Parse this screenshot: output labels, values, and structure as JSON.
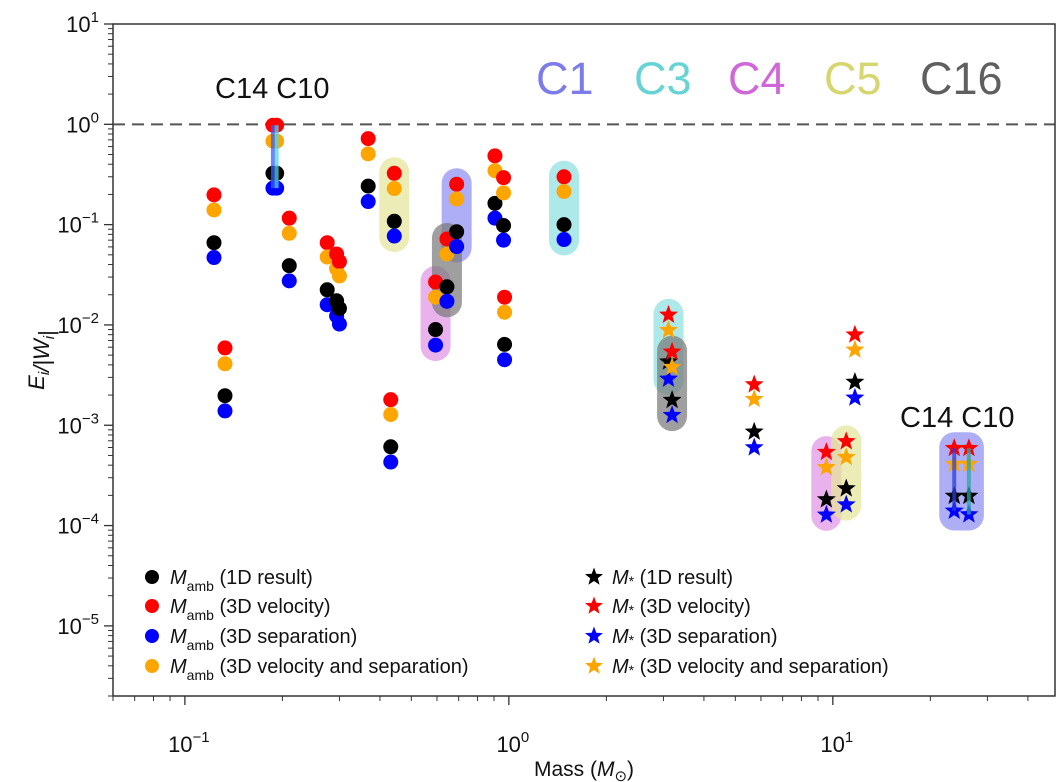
{
  "chart_data": {
    "type": "scatter",
    "xscale": "log",
    "yscale": "log",
    "xlim": [
      0.06,
      48.5
    ],
    "ylim": [
      2e-06,
      10
    ],
    "grid": false,
    "legend_placement": "bottom",
    "xlabel": {
      "text": "Mass (",
      "symbol": "M",
      "sub": "⊙",
      "end": ")"
    },
    "ylabel": {
      "parts": [
        [
          "E",
          "i"
        ],
        [
          "/|W",
          "i"
        ],
        [
          "|",
          ""
        ]
      ]
    },
    "xticks": [
      {
        "value": 0.1,
        "label": "10^-1"
      },
      {
        "value": 1,
        "label": "10^0"
      },
      {
        "value": 10,
        "label": "10^1"
      }
    ],
    "yticks": [
      {
        "value": 10,
        "label": "10^1"
      },
      {
        "value": 1,
        "label": "10^0"
      },
      {
        "value": 0.1,
        "label": "10^-1"
      },
      {
        "value": 0.01,
        "label": "10^-2"
      },
      {
        "value": 0.001,
        "label": "10^-3"
      },
      {
        "value": 0.0001,
        "label": "10^-4"
      },
      {
        "value": 1e-05,
        "label": "10^-5"
      }
    ],
    "reference_line": {
      "y": 1,
      "style": "dashed",
      "color": "#555555"
    },
    "series": [
      {
        "key": "1d",
        "marker_group": "amb",
        "color": "#000000",
        "label": {
          "symbol": "M",
          "sub": "amb",
          "text": " (1D result)"
        }
      },
      {
        "key": "vel",
        "marker_group": "amb",
        "color": "#ff0000",
        "label": {
          "symbol": "M",
          "sub": "amb",
          "text": " (3D velocity)"
        }
      },
      {
        "key": "sep",
        "marker_group": "amb",
        "color": "#0000ff",
        "label": {
          "symbol": "M",
          "sub": "amb",
          "text": " (3D separation)"
        }
      },
      {
        "key": "velsep",
        "marker_group": "amb",
        "color": "#ffa500",
        "label": {
          "symbol": "M",
          "sub": "amb",
          "text": " (3D velocity and separation)"
        }
      },
      {
        "key": "1d",
        "marker_group": "star",
        "color": "#000000",
        "label": {
          "symbol": "M",
          "sub": "*",
          "text": " (1D result)"
        }
      },
      {
        "key": "vel",
        "marker_group": "star",
        "color": "#ff0000",
        "label": {
          "symbol": "M",
          "sub": "*",
          "text": " (3D velocity)"
        }
      },
      {
        "key": "sep",
        "marker_group": "star",
        "color": "#0000ff",
        "label": {
          "symbol": "M",
          "sub": "*",
          "text": " (3D separation)"
        }
      },
      {
        "key": "velsep",
        "marker_group": "star",
        "color": "#ffa500",
        "label": {
          "symbol": "M",
          "sub": "*",
          "text": " (3D velocity and separation)"
        }
      }
    ],
    "groups": [
      {
        "id": "a",
        "marker": "circle",
        "mass": 0.123,
        "1d": 0.066,
        "vel": 0.198,
        "sep": 0.047,
        "velsep": 0.14
      },
      {
        "id": "b",
        "marker": "circle",
        "mass": 0.133,
        "1d": 0.00197,
        "vel": 0.0059,
        "sep": 0.00139,
        "velsep": 0.0041
      },
      {
        "id": "c14a",
        "marker": "circle",
        "mass": 0.187,
        "1d": 0.325,
        "vel": 0.98,
        "sep": 0.231,
        "velsep": 0.68
      },
      {
        "id": "c10a",
        "marker": "circle",
        "mass": 0.192,
        "1d": 0.325,
        "vel": 0.98,
        "sep": 0.231,
        "velsep": 0.68
      },
      {
        "id": "d",
        "marker": "circle",
        "mass": 0.21,
        "1d": 0.039,
        "vel": 0.116,
        "sep": 0.0275,
        "velsep": 0.082
      },
      {
        "id": "e",
        "marker": "circle",
        "mass": 0.275,
        "1d": 0.0224,
        "vel": 0.066,
        "sep": 0.0159,
        "velsep": 0.0475
      },
      {
        "id": "f1",
        "marker": "circle",
        "mass": 0.294,
        "1d": 0.0174,
        "vel": 0.051,
        "sep": 0.0123,
        "velsep": 0.0364
      },
      {
        "id": "f2",
        "marker": "circle",
        "mass": 0.3,
        "1d": 0.0146,
        "vel": 0.0428,
        "sep": 0.0102,
        "velsep": 0.0308
      },
      {
        "id": "g",
        "marker": "circle",
        "mass": 0.368,
        "1d": 0.242,
        "vel": 0.72,
        "sep": 0.17,
        "velsep": 0.508
      },
      {
        "id": "i",
        "marker": "circle",
        "mass": 0.432,
        "1d": 0.00061,
        "vel": 0.0018,
        "sep": 0.00043,
        "velsep": 0.00128
      },
      {
        "id": "c5a",
        "marker": "circle",
        "mass": 0.443,
        "1d": 0.108,
        "vel": 0.325,
        "sep": 0.077,
        "velsep": 0.229
      },
      {
        "id": "c4a",
        "marker": "circle",
        "mass": 0.594,
        "1d": 0.009,
        "vel": 0.0268,
        "sep": 0.0063,
        "velsep": 0.0189
      },
      {
        "id": "c16a",
        "marker": "circle",
        "mass": 0.644,
        "1d": 0.024,
        "vel": 0.072,
        "sep": 0.0172,
        "velsep": 0.051
      },
      {
        "id": "c1a",
        "marker": "circle",
        "mass": 0.69,
        "1d": 0.085,
        "vel": 0.253,
        "sep": 0.0605,
        "velsep": 0.18
      },
      {
        "id": "m",
        "marker": "circle",
        "mass": 0.906,
        "1d": 0.163,
        "vel": 0.485,
        "sep": 0.116,
        "velsep": 0.345
      },
      {
        "id": "n",
        "marker": "circle",
        "mass": 0.963,
        "1d": 0.098,
        "vel": 0.294,
        "sep": 0.07,
        "velsep": 0.207
      },
      {
        "id": "o",
        "marker": "circle",
        "mass": 0.97,
        "1d": 0.0064,
        "vel": 0.0189,
        "sep": 0.0045,
        "velsep": 0.0134
      },
      {
        "id": "c3a",
        "marker": "circle",
        "mass": 1.48,
        "1d": 0.1,
        "vel": 0.3,
        "sep": 0.071,
        "velsep": 0.214
      },
      {
        "id": "c3b",
        "marker": "star",
        "mass": 3.11,
        "1d": 0.0043,
        "vel": 0.0126,
        "sep": 0.0029,
        "velsep": 0.00886
      },
      {
        "id": "c16b",
        "marker": "star",
        "mass": 3.19,
        "1d": 0.00178,
        "vel": 0.0054,
        "sep": 0.00126,
        "velsep": 0.0038
      },
      {
        "id": "s2",
        "marker": "star",
        "mass": 5.72,
        "1d": 0.00086,
        "vel": 0.00255,
        "sep": 0.0006,
        "velsep": 0.00182
      },
      {
        "id": "c4b",
        "marker": "star",
        "mass": 9.55,
        "1d": 0.000182,
        "vel": 0.00054,
        "sep": 0.000128,
        "velsep": 0.00038
      },
      {
        "id": "c5b",
        "marker": "star",
        "mass": 11.0,
        "1d": 0.000234,
        "vel": 0.00069,
        "sep": 0.000162,
        "velsep": 0.00048
      },
      {
        "id": "s3",
        "marker": "star",
        "mass": 11.7,
        "1d": 0.0027,
        "vel": 0.008,
        "sep": 0.00188,
        "velsep": 0.00565
      },
      {
        "id": "c14b",
        "marker": "star",
        "mass": 23.7,
        "1d": 0.000197,
        "vel": 0.00059,
        "sep": 0.00014,
        "velsep": 0.00041
      },
      {
        "id": "c10b",
        "marker": "star",
        "mass": 26.3,
        "1d": 0.000197,
        "vel": 0.00059,
        "sep": 0.000129,
        "velsep": 0.00041
      }
    ],
    "highlights": [
      {
        "name": "C1",
        "color": "#7b7bea",
        "fill": "#8f8ff2",
        "groups": [
          [
            "c1a"
          ],
          [
            "c14b",
            "c10b"
          ]
        ]
      },
      {
        "name": "C3",
        "color": "#66d4d4",
        "fill": "#8fe0e0",
        "groups": [
          [
            "c3a"
          ],
          [
            "c3b"
          ]
        ]
      },
      {
        "name": "C4",
        "color": "#d067d8",
        "fill": "#e094e6",
        "groups": [
          [
            "c4a"
          ],
          [
            "c4b"
          ]
        ]
      },
      {
        "name": "C5",
        "color": "#d6d66e",
        "fill": "#e4e49a",
        "groups": [
          [
            "c5a"
          ],
          [
            "c5b"
          ]
        ]
      },
      {
        "name": "C16",
        "color": "#5f5f5f",
        "fill": "#7a7a7a",
        "groups": [
          [
            "c16a"
          ],
          [
            "c16b"
          ]
        ]
      }
    ],
    "connectors": [
      {
        "group": "c14a",
        "color": "#3a5cff"
      },
      {
        "group": "c10a",
        "color": "#4fd6e6"
      },
      {
        "group": "c14b",
        "color": "#2a3cdd"
      },
      {
        "group": "c10b",
        "color": "#2aa6a6"
      }
    ],
    "annotations": [
      {
        "text": "C14 C10",
        "near": "low-mass pair"
      },
      {
        "text": "C14 C10",
        "near": "high-mass pair"
      }
    ]
  }
}
